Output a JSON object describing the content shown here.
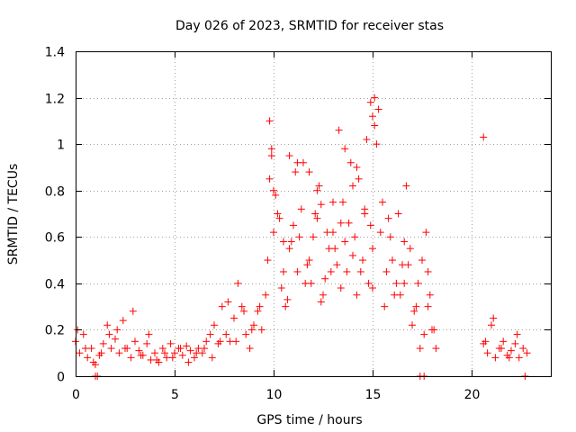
{
  "chart_data": {
    "type": "scatter",
    "title": "Day 026 of 2023, SRMTID for receiver stas",
    "xlabel": "GPS time / hours",
    "ylabel": "SRMTID / TECUs",
    "xlim": [
      0,
      24
    ],
    "ylim": [
      0,
      1.4
    ],
    "xticks": [
      0,
      5,
      10,
      15,
      20
    ],
    "xtick_labels": [
      "0",
      "5",
      "10",
      "15",
      "20"
    ],
    "yticks": [
      0,
      0.2,
      0.4,
      0.6,
      0.8,
      1.0,
      1.2,
      1.4
    ],
    "ytick_labels": [
      "0",
      "0.2",
      "0.4",
      "0.6",
      "0.8",
      "1",
      "1.2",
      "1.4"
    ],
    "grid": true,
    "marker": "+",
    "colors": {
      "series": "#ff0000",
      "grid": "#a0a0a0",
      "axis": "#000000"
    },
    "series": [
      {
        "name": "SRMTID",
        "x": [
          0.0,
          0.2,
          0.4,
          0.6,
          0.8,
          1.0,
          1.2,
          1.4,
          1.6,
          1.8,
          2.0,
          2.2,
          2.4,
          2.6,
          2.8,
          3.0,
          3.2,
          3.4,
          3.6,
          3.8,
          4.0,
          4.2,
          4.4,
          4.6,
          4.8,
          5.0,
          5.2,
          5.4,
          5.6,
          5.8,
          6.0,
          6.2,
          6.4,
          6.6,
          6.8,
          7.0,
          7.2,
          7.4,
          7.6,
          7.8,
          8.0,
          8.2,
          8.4,
          8.6,
          8.8,
          9.0,
          9.2,
          9.4,
          9.6,
          9.8,
          10.0,
          10.2,
          10.4,
          10.6,
          10.8,
          11.0,
          11.2,
          11.4,
          11.6,
          11.8,
          12.0,
          12.2,
          12.4,
          12.6,
          12.8,
          13.0,
          13.2,
          13.4,
          13.6,
          13.8,
          14.0,
          14.2,
          14.4,
          14.6,
          14.8,
          15.0,
          15.2,
          15.4,
          15.6,
          15.8,
          16.0,
          16.2,
          16.4,
          16.6,
          16.8,
          17.0,
          17.2,
          17.4,
          17.6,
          17.8,
          18.0,
          18.2,
          20.6,
          20.8,
          21.0,
          21.2,
          21.4,
          21.6,
          21.8,
          22.0,
          22.2,
          22.4,
          22.6,
          22.8,
          0.1,
          0.5,
          0.9,
          1.3,
          1.7,
          2.1,
          2.5,
          2.9,
          3.3,
          3.7,
          4.1,
          4.5,
          4.9,
          5.3,
          5.7,
          6.1,
          6.5,
          6.9,
          7.3,
          7.7,
          8.1,
          8.5,
          8.9,
          9.3,
          9.7,
          9.8,
          9.9,
          10.1,
          10.3,
          10.5,
          10.7,
          10.9,
          11.1,
          11.3,
          11.5,
          11.7,
          11.9,
          12.1,
          12.3,
          12.5,
          12.7,
          12.9,
          13.1,
          13.3,
          13.5,
          13.7,
          13.9,
          14.1,
          14.3,
          14.5,
          14.7,
          14.9,
          15.0,
          15.1,
          15.3,
          15.5,
          15.7,
          15.9,
          16.1,
          16.3,
          16.5,
          16.7,
          16.9,
          17.1,
          17.3,
          17.5,
          17.7,
          17.9,
          18.1,
          20.7,
          21.1,
          21.5,
          21.9,
          22.3,
          22.7,
          1.0,
          1.1,
          17.4,
          17.6,
          20.6,
          9.9,
          10.0,
          10.5,
          10.8,
          11.8,
          12.4,
          13.0,
          13.6,
          14.0,
          14.6,
          14.9,
          15.0,
          15.1,
          16.6,
          17.8,
          14.2,
          12.2,
          11.2,
          13.4
        ],
        "y": [
          0.15,
          0.1,
          0.18,
          0.08,
          0.12,
          0.05,
          0.09,
          0.14,
          0.22,
          0.12,
          0.16,
          0.1,
          0.24,
          0.12,
          0.08,
          0.15,
          0.11,
          0.09,
          0.14,
          0.07,
          0.1,
          0.06,
          0.12,
          0.08,
          0.14,
          0.1,
          0.12,
          0.09,
          0.13,
          0.11,
          0.08,
          0.12,
          0.1,
          0.15,
          0.18,
          0.22,
          0.14,
          0.3,
          0.18,
          0.15,
          0.25,
          0.4,
          0.3,
          0.18,
          0.12,
          0.22,
          0.28,
          0.2,
          0.35,
          0.85,
          0.62,
          0.7,
          0.38,
          0.3,
          0.55,
          0.65,
          0.45,
          0.72,
          0.4,
          0.5,
          0.6,
          0.68,
          0.32,
          0.42,
          0.55,
          0.75,
          0.48,
          0.38,
          0.58,
          0.66,
          0.52,
          0.35,
          0.45,
          0.72,
          0.4,
          0.55,
          1.0,
          0.62,
          0.3,
          0.68,
          0.5,
          0.4,
          0.35,
          0.58,
          0.48,
          0.22,
          0.3,
          0.12,
          0.18,
          0.45,
          0.2,
          0.12,
          0.14,
          0.1,
          0.22,
          0.08,
          0.12,
          0.15,
          0.09,
          0.11,
          0.14,
          0.08,
          0.12,
          0.1,
          0.2,
          0.12,
          0.06,
          0.1,
          0.18,
          0.2,
          0.12,
          0.28,
          0.09,
          0.18,
          0.07,
          0.1,
          0.08,
          0.12,
          0.06,
          0.1,
          0.12,
          0.08,
          0.15,
          0.32,
          0.15,
          0.28,
          0.2,
          0.3,
          0.5,
          1.1,
          0.95,
          0.78,
          0.68,
          0.45,
          0.33,
          0.58,
          0.88,
          0.6,
          0.92,
          0.48,
          0.4,
          0.7,
          0.82,
          0.35,
          0.62,
          0.45,
          0.55,
          1.06,
          0.75,
          0.45,
          0.92,
          0.6,
          0.85,
          0.5,
          1.02,
          0.65,
          0.38,
          1.2,
          1.15,
          0.75,
          0.45,
          0.6,
          0.35,
          0.7,
          0.48,
          0.82,
          0.55,
          0.28,
          0.4,
          0.5,
          0.62,
          0.35,
          0.2,
          0.15,
          0.25,
          0.12,
          0.08,
          0.18,
          0.0,
          0.0,
          0.0,
          0.0,
          0.0,
          1.03,
          0.98,
          0.8,
          0.58,
          0.95,
          0.88,
          0.74,
          0.62,
          0.98,
          0.82,
          0.7,
          1.18,
          1.12,
          1.08,
          0.4,
          0.3,
          0.9,
          0.8,
          0.92,
          0.66
        ]
      }
    ]
  }
}
